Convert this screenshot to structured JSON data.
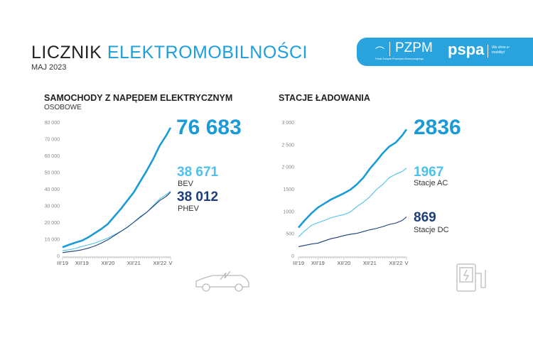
{
  "header": {
    "title_part1": "LICZNIK",
    "title_part2": "ELEKTROMOBILNOŚCI",
    "date": "MAJ 2023"
  },
  "logos": {
    "pzpm": "PZPM",
    "pzpm_sub": "Polski Związek Przemysłu Motoryzacyjnego",
    "pspa": "pspa",
    "pspa_tag": "We drive e-mobility!"
  },
  "colors": {
    "total": "#1a9ad8",
    "light": "#4fc0ea",
    "dark": "#1d3e78",
    "banner": "#29a3de"
  },
  "chart_data": [
    {
      "type": "line",
      "title": "SAMOCHODY Z NAPĘDEM ELEKTRYCZNYM",
      "subtitle": "OSOBOWE",
      "ylim": [
        0,
        80000
      ],
      "yticks": [
        "0",
        "10 000",
        "20 000",
        "30 000",
        "40 000",
        "50 000",
        "60 000",
        "70 000",
        "80 000"
      ],
      "xticks": [
        "III'19",
        "XII'19",
        "XII'20",
        "XII'21",
        "XII'22",
        "V"
      ],
      "x": [
        "2019-03",
        "2019-06",
        "2019-09",
        "2019-12",
        "2020-03",
        "2020-06",
        "2020-09",
        "2020-12",
        "2021-03",
        "2021-06",
        "2021-09",
        "2021-12",
        "2022-03",
        "2022-06",
        "2022-09",
        "2022-12",
        "2023-03",
        "2023-05"
      ],
      "series": [
        {
          "values": [
            5000,
            6500,
            7800,
            9000,
            11000,
            13500,
            16000,
            19000,
            23500,
            28000,
            33000,
            38000,
            44500,
            51000,
            58000,
            66000,
            72000,
            76683
          ],
          "final": "76 683",
          "label": ""
        },
        {
          "values": [
            3000,
            3500,
            4300,
            5500,
            6500,
            7500,
            9000,
            10500,
            12500,
            14500,
            17000,
            20000,
            23500,
            26000,
            30000,
            34000,
            36500,
            38671
          ],
          "final": "38 671",
          "label": "BEV"
        },
        {
          "values": [
            1800,
            2300,
            2800,
            3500,
            4500,
            5800,
            7500,
            9500,
            12000,
            14500,
            17000,
            20000,
            23000,
            26000,
            29500,
            33000,
            35500,
            38012
          ],
          "final": "38 012",
          "label": "PHEV"
        }
      ]
    },
    {
      "type": "line",
      "title": "STACJE ŁADOWANIA",
      "subtitle": "",
      "ylim": [
        0,
        3000
      ],
      "yticks": [
        "0",
        "500",
        "1000",
        "1500",
        "2 000",
        "2 500",
        "3 000"
      ],
      "xticks": [
        "III'19",
        "XII'19",
        "XII'20",
        "XII'21",
        "XII'22",
        "V"
      ],
      "x": [
        "2019-03",
        "2019-06",
        "2019-09",
        "2019-12",
        "2020-03",
        "2020-06",
        "2020-09",
        "2020-12",
        "2021-03",
        "2021-06",
        "2021-09",
        "2021-12",
        "2022-03",
        "2022-06",
        "2022-09",
        "2022-12",
        "2023-03",
        "2023-05"
      ],
      "series": [
        {
          "values": [
            630,
            800,
            950,
            1080,
            1170,
            1260,
            1330,
            1400,
            1480,
            1600,
            1750,
            1950,
            2120,
            2300,
            2450,
            2540,
            2700,
            2836
          ],
          "final": "2836",
          "label": ""
        },
        {
          "values": [
            420,
            560,
            680,
            740,
            790,
            850,
            890,
            920,
            980,
            1100,
            1200,
            1320,
            1480,
            1600,
            1750,
            1830,
            1890,
            1967
          ],
          "final": "1967",
          "label": "Stacje AC"
        },
        {
          "values": [
            200,
            230,
            260,
            280,
            330,
            380,
            410,
            450,
            480,
            500,
            540,
            580,
            610,
            650,
            700,
            730,
            790,
            869
          ],
          "final": "869",
          "label": "Stacje DC"
        }
      ]
    }
  ]
}
